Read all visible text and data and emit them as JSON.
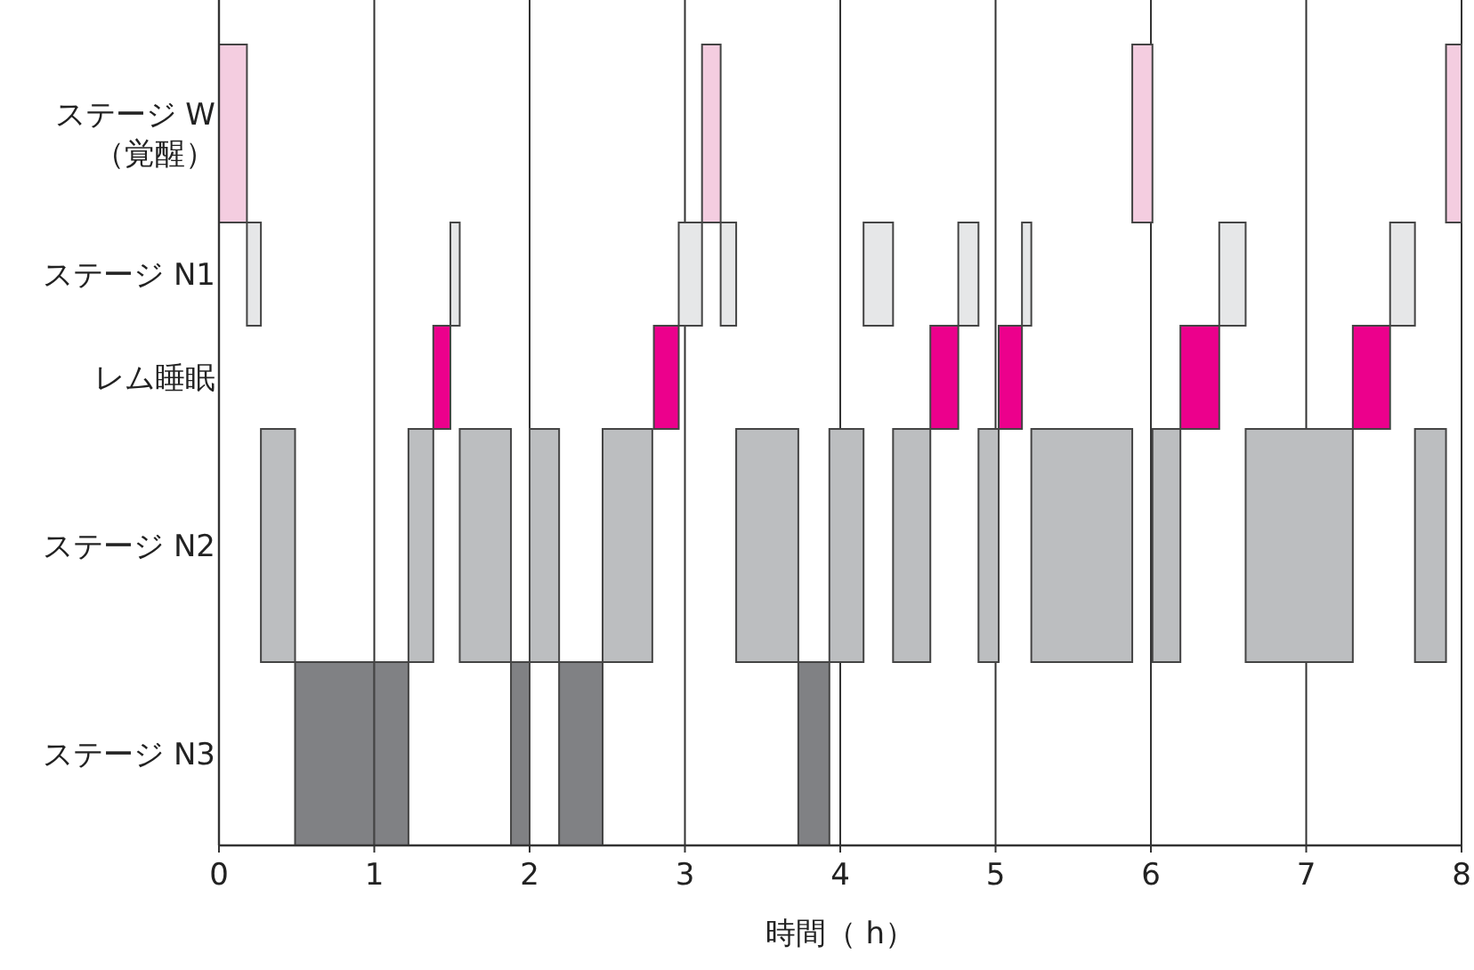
{
  "chart_data": {
    "type": "bar",
    "orientation": "horizontal",
    "xlabel": "時間（ h）",
    "categories": [
      "ステージ W\n（覚醒）",
      "ステージ N1",
      "レム睡眠",
      "ステージ N2",
      "ステージ N3"
    ],
    "xlim": [
      0,
      8
    ],
    "xticks": [
      0,
      1,
      2,
      3,
      4,
      5,
      6,
      7,
      8
    ],
    "grid": "x",
    "series": [
      {
        "base": [
          0,
          0.18,
          1.38,
          0.27,
          0.49
        ],
        "values": [
          0.18,
          0.09,
          0.11,
          0.22,
          0.51
        ],
        "colors": [
          "#f4cde0",
          "#e6e7e8",
          "#ec008c",
          "#bcbec0",
          "#808184"
        ]
      },
      {
        "base": [
          3.11,
          1.49,
          2.8,
          1.22,
          1.0
        ],
        "values": [
          0.12,
          0.06,
          0.16,
          0.16,
          0.22
        ],
        "colors": [
          "#f4cde0",
          "#e6e7e8",
          "#ec008c",
          "#bcbec0",
          "#808184"
        ]
      },
      {
        "base": [
          5.88,
          2.96,
          4.58,
          1.55,
          1.88
        ],
        "values": [
          0.13,
          0.15,
          0.18,
          0.33,
          0.12
        ],
        "colors": [
          "#f4cde0",
          "#e6e7e8",
          "#ec008c",
          "#bcbec0",
          "#808184"
        ]
      },
      {
        "base": [
          7.9,
          3.23,
          5.02,
          2.0,
          2.19
        ],
        "values": [
          0.1,
          0.1,
          0.15,
          0.19,
          0.28
        ],
        "colors": [
          "#f4cde0",
          "#e6e7e8",
          "#ec008c",
          "#bcbec0",
          "#808184"
        ]
      },
      {
        "base": [
          null,
          4.15,
          6.19,
          2.47,
          3.73
        ],
        "values": [
          null,
          0.19,
          0.25,
          0.32,
          0.2
        ],
        "colors": [
          null,
          "#e6e7e8",
          "#ec008c",
          "#bcbec0",
          "#808184"
        ]
      },
      {
        "base": [
          null,
          4.76,
          7.3,
          3.33,
          null
        ],
        "values": [
          null,
          0.13,
          0.24,
          0.4,
          null
        ],
        "colors": [
          null,
          "#e6e7e8",
          "#ec008c",
          "#bcbec0",
          null
        ]
      },
      {
        "base": [
          null,
          5.17,
          null,
          3.93,
          null
        ],
        "values": [
          null,
          0.06,
          null,
          0.22,
          null
        ],
        "colors": [
          null,
          "#e6e7e8",
          null,
          "#bcbec0",
          null
        ]
      },
      {
        "base": [
          null,
          6.44,
          null,
          4.34,
          null
        ],
        "values": [
          null,
          0.17,
          null,
          0.24,
          null
        ],
        "colors": [
          null,
          "#e6e7e8",
          null,
          "#bcbec0",
          null
        ]
      },
      {
        "base": [
          null,
          7.54,
          null,
          4.89,
          null
        ],
        "values": [
          null,
          0.16,
          null,
          0.13,
          null
        ],
        "colors": [
          null,
          "#e6e7e8",
          null,
          "#bcbec0",
          null
        ]
      },
      {
        "base": [
          null,
          null,
          null,
          5.23,
          null
        ],
        "values": [
          null,
          null,
          null,
          0.65,
          null
        ],
        "color": "#bcbec0"
      },
      {
        "base": [
          null,
          null,
          null,
          6.01,
          null
        ],
        "values": [
          null,
          null,
          null,
          0.18,
          null
        ],
        "color": "#bcbec0"
      },
      {
        "base": [
          null,
          null,
          null,
          6.61,
          null
        ],
        "values": [
          null,
          null,
          null,
          0.69,
          null
        ],
        "color": "#bcbec0"
      },
      {
        "base": [
          null,
          null,
          null,
          7.7,
          null
        ],
        "values": [
          null,
          null,
          null,
          0.2,
          null
        ],
        "color": "#bcbec0"
      }
    ]
  }
}
